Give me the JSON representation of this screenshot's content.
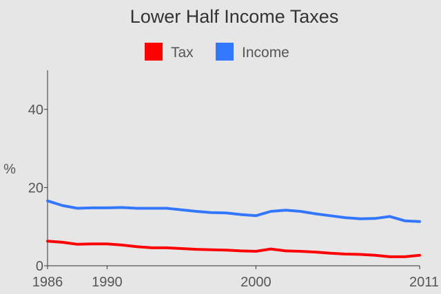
{
  "chart_data": {
    "type": "line",
    "title": "Lower Half Income Taxes",
    "xlabel": "",
    "ylabel": "%",
    "x": [
      1986,
      1987,
      1988,
      1989,
      1990,
      1991,
      1992,
      1993,
      1994,
      1995,
      1996,
      1997,
      1998,
      1999,
      2000,
      2001,
      2002,
      2003,
      2004,
      2005,
      2006,
      2007,
      2008,
      2009,
      2010,
      2011
    ],
    "xlim": [
      1986,
      2011
    ],
    "ylim": [
      0,
      50
    ],
    "xticks": [
      1986,
      1990,
      2000,
      2011
    ],
    "yticks": [
      0,
      20,
      40
    ],
    "legend_position": "top",
    "grid": false,
    "series": [
      {
        "name": "Tax",
        "color": "#ff0000",
        "values": [
          6.3,
          6.0,
          5.5,
          5.6,
          5.6,
          5.3,
          4.9,
          4.6,
          4.6,
          4.4,
          4.2,
          4.1,
          4.0,
          3.8,
          3.7,
          4.3,
          3.8,
          3.7,
          3.5,
          3.2,
          3.0,
          2.9,
          2.7,
          2.3,
          2.3,
          2.7
        ]
      },
      {
        "name": "Income",
        "color": "#3377ff",
        "values": [
          16.6,
          15.4,
          14.7,
          14.8,
          14.8,
          14.9,
          14.7,
          14.7,
          14.7,
          14.3,
          13.9,
          13.6,
          13.5,
          13.1,
          12.8,
          13.9,
          14.2,
          13.9,
          13.3,
          12.8,
          12.3,
          12.0,
          12.1,
          12.6,
          11.5,
          11.3
        ]
      }
    ]
  }
}
